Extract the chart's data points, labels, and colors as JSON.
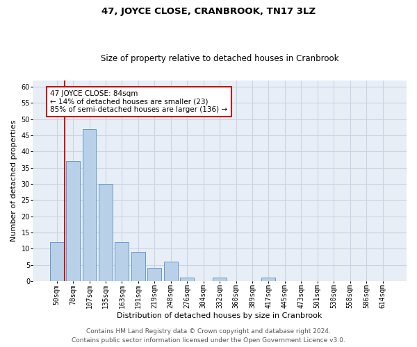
{
  "title": "47, JOYCE CLOSE, CRANBROOK, TN17 3LZ",
  "subtitle": "Size of property relative to detached houses in Cranbrook",
  "xlabel": "Distribution of detached houses by size in Cranbrook",
  "ylabel": "Number of detached properties",
  "categories": [
    "50sqm",
    "78sqm",
    "107sqm",
    "135sqm",
    "163sqm",
    "191sqm",
    "219sqm",
    "248sqm",
    "276sqm",
    "304sqm",
    "332sqm",
    "360sqm",
    "389sqm",
    "417sqm",
    "445sqm",
    "473sqm",
    "501sqm",
    "530sqm",
    "558sqm",
    "586sqm",
    "614sqm"
  ],
  "values": [
    12,
    37,
    47,
    30,
    12,
    9,
    4,
    6,
    1,
    0,
    1,
    0,
    0,
    1,
    0,
    0,
    0,
    0,
    0,
    0,
    0
  ],
  "bar_color": "#b8d0e8",
  "bar_edge_color": "#6699cc",
  "vline_x": 1.5,
  "vline_color": "#cc0000",
  "annotation_box_text": "47 JOYCE CLOSE: 84sqm\n← 14% of detached houses are smaller (23)\n85% of semi-detached houses are larger (136) →",
  "box_edge_color": "#cc0000",
  "ylim": [
    0,
    62
  ],
  "yticks": [
    0,
    5,
    10,
    15,
    20,
    25,
    30,
    35,
    40,
    45,
    50,
    55,
    60
  ],
  "grid_color": "#c8d4e4",
  "plot_bg_color": "#e8eef6",
  "footer_line1": "Contains HM Land Registry data © Crown copyright and database right 2024.",
  "footer_line2": "Contains public sector information licensed under the Open Government Licence v3.0.",
  "title_fontsize": 9.5,
  "subtitle_fontsize": 8.5,
  "xlabel_fontsize": 8,
  "ylabel_fontsize": 8,
  "annotation_fontsize": 7.5,
  "footer_fontsize": 6.5,
  "tick_fontsize": 7
}
